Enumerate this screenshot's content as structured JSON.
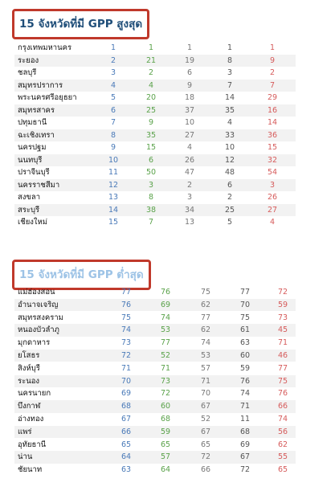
{
  "top": {
    "title": "15 จังหวัดที่มี GPP สูงสุด",
    "rows": [
      {
        "name": "กรุงเทพมหานคร",
        "v": [
          1,
          1,
          1,
          1,
          1
        ]
      },
      {
        "name": "ระยอง",
        "v": [
          2,
          21,
          19,
          8,
          9
        ]
      },
      {
        "name": "ชลบุรี",
        "v": [
          3,
          2,
          6,
          3,
          2
        ]
      },
      {
        "name": "สมุทรปราการ",
        "v": [
          4,
          4,
          9,
          7,
          7
        ]
      },
      {
        "name": "พระนครศรีอยุธยา",
        "v": [
          5,
          20,
          18,
          14,
          29
        ]
      },
      {
        "name": "สมุทรสาคร",
        "v": [
          6,
          25,
          37,
          35,
          16
        ]
      },
      {
        "name": "ปทุมธานี",
        "v": [
          7,
          9,
          10,
          4,
          14
        ]
      },
      {
        "name": "ฉะเชิงเทรา",
        "v": [
          8,
          35,
          27,
          33,
          36
        ]
      },
      {
        "name": "นครปฐม",
        "v": [
          9,
          15,
          4,
          10,
          15
        ]
      },
      {
        "name": "นนทบุรี",
        "v": [
          10,
          6,
          26,
          12,
          32
        ]
      },
      {
        "name": "ปราจีนบุรี",
        "v": [
          11,
          50,
          47,
          48,
          54
        ]
      },
      {
        "name": "นครราชสีมา",
        "v": [
          12,
          3,
          2,
          6,
          3
        ]
      },
      {
        "name": "สงขลา",
        "v": [
          13,
          8,
          3,
          2,
          26
        ]
      },
      {
        "name": "สระบุรี",
        "v": [
          14,
          38,
          34,
          25,
          27
        ]
      },
      {
        "name": "เชียงใหม่",
        "v": [
          15,
          7,
          13,
          5,
          4
        ]
      }
    ]
  },
  "bottom": {
    "title": "15 จังหวัดที่มี GPP ต่ำสุด",
    "rows": [
      {
        "name": "แม่ฮ่องสอน",
        "v": [
          77,
          76,
          75,
          77,
          72
        ]
      },
      {
        "name": "อำนาจเจริญ",
        "v": [
          76,
          69,
          62,
          70,
          59
        ]
      },
      {
        "name": "สมุทรสงคราม",
        "v": [
          75,
          74,
          77,
          75,
          73
        ]
      },
      {
        "name": "หนองบัวลำภู",
        "v": [
          74,
          53,
          62,
          61,
          45
        ]
      },
      {
        "name": "มุกดาหาร",
        "v": [
          73,
          77,
          74,
          63,
          71
        ]
      },
      {
        "name": "ยโสธร",
        "v": [
          72,
          52,
          53,
          60,
          46
        ]
      },
      {
        "name": "สิงห์บุรี",
        "v": [
          71,
          71,
          57,
          59,
          77
        ]
      },
      {
        "name": "ระนอง",
        "v": [
          70,
          73,
          71,
          76,
          75
        ]
      },
      {
        "name": "นครนายก",
        "v": [
          69,
          72,
          70,
          74,
          76
        ]
      },
      {
        "name": "บึงกาฬ",
        "v": [
          68,
          60,
          67,
          71,
          66
        ]
      },
      {
        "name": "อ่างทอง",
        "v": [
          67,
          68,
          52,
          11,
          74
        ]
      },
      {
        "name": "แพร่",
        "v": [
          66,
          59,
          67,
          68,
          56
        ]
      },
      {
        "name": "อุทัยธานี",
        "v": [
          65,
          65,
          65,
          69,
          62
        ]
      },
      {
        "name": "น่าน",
        "v": [
          64,
          57,
          72,
          67,
          55
        ]
      },
      {
        "name": "ชัยนาท",
        "v": [
          63,
          64,
          66,
          72,
          65
        ]
      }
    ]
  }
}
